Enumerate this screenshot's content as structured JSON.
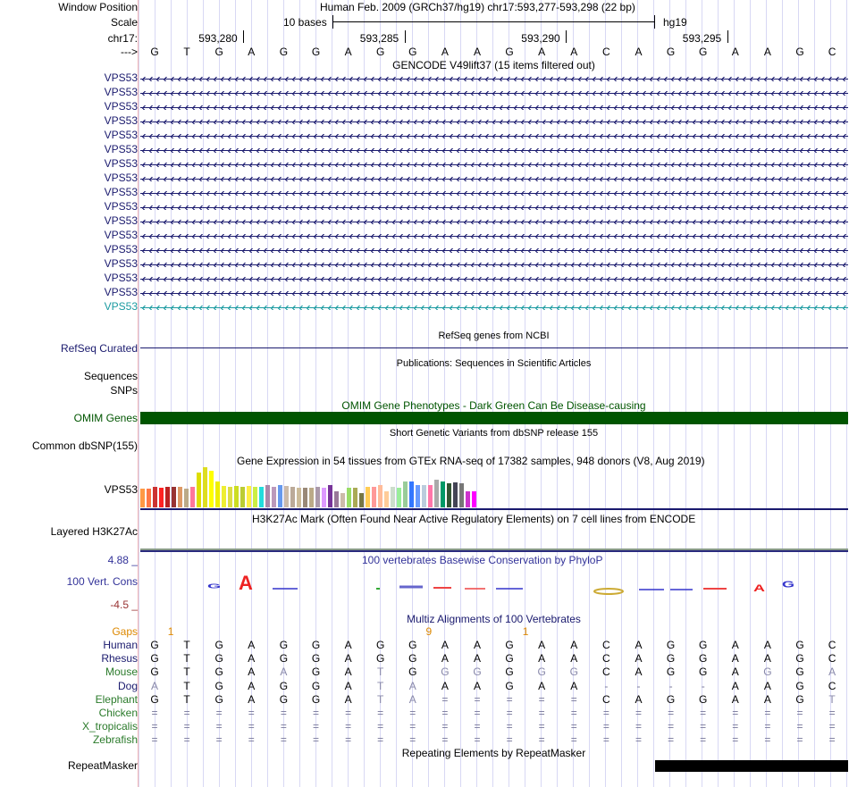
{
  "header": {
    "window_position_label": "Window Position",
    "scale_label": "Scale",
    "chrom_label": "chr17:",
    "strand_label": "--->",
    "assembly_title": "Human Feb. 2009 (GRCh37/hg19)   chr17:593,277-593,298 (22 bp)",
    "scale_text": "10 bases",
    "scale_db": "hg19",
    "ruler_ticks": [
      "593,280",
      "593,285",
      "593,290",
      "593,295"
    ],
    "bases": [
      "G",
      "T",
      "G",
      "A",
      "G",
      "G",
      "A",
      "G",
      "G",
      "A",
      "A",
      "G",
      "A",
      "A",
      "C",
      "A",
      "G",
      "G",
      "A",
      "A",
      "G",
      "C"
    ]
  },
  "gencode": {
    "title": "GENCODE V49lift37 (15 items filtered out)",
    "gene_labels": [
      "VPS53",
      "VPS53",
      "VPS53",
      "VPS53",
      "VPS53",
      "VPS53",
      "VPS53",
      "VPS53",
      "VPS53",
      "VPS53",
      "VPS53",
      "VPS53",
      "VPS53",
      "VPS53",
      "VPS53",
      "VPS53",
      "VPS53"
    ]
  },
  "refseq": {
    "label": "RefSeq Curated",
    "title": "RefSeq genes from NCBI"
  },
  "publications": {
    "sequences_label": "Sequences",
    "snps_label": "SNPs",
    "title": "Publications: Sequences in Scientific Articles"
  },
  "omim": {
    "label": "OMIM Genes",
    "title": "OMIM Gene Phenotypes - Dark Green Can Be Disease-causing"
  },
  "dbsnp": {
    "label": "Common dbSNP(155)",
    "title": "Short Genetic Variants from dbSNP release 155"
  },
  "gtex": {
    "label": "VPS53",
    "title": "Gene Expression in 54 tissues from GTEx RNA-seq of 17382 samples, 948 donors (V8, Aug 2019)",
    "bar_colors": [
      "#ff9944",
      "#ff7744",
      "#cc3333",
      "#ff2222",
      "#bb2222",
      "#993333",
      "#dd9966",
      "#bbaa88",
      "#ff7799",
      "#dddd00",
      "#dddd22",
      "#ffff00",
      "#eeee00",
      "#eeee33",
      "#dddd44",
      "#ccdd22",
      "#bbcc33",
      "#ffee44",
      "#ccee44",
      "#22dddd",
      "#aa88aa",
      "#bb99bb",
      "#6699ee",
      "#ccbbaa",
      "#bbaa99",
      "#ccbb99",
      "#998877",
      "#bbaa88",
      "#aa99aa",
      "#dd99ff",
      "#773399",
      "#997799",
      "#ccbbaa",
      "#99dd66",
      "#aaaa55",
      "#777744",
      "#ffcc55",
      "#ff9999",
      "#ffbb99",
      "#ffcc99",
      "#ccddcc",
      "#99ee99",
      "#99cc99",
      "#3377ff",
      "#6699ff",
      "#bbccdd",
      "#ff77aa",
      "#aaaaaa",
      "#009966",
      "#335533",
      "#444455",
      "#777777",
      "#cc33cc",
      "#ff00ff"
    ],
    "bar_values": [
      0.46,
      0.46,
      0.5,
      0.48,
      0.5,
      0.5,
      0.52,
      0.46,
      0.5,
      0.86,
      1.0,
      0.92,
      0.64,
      0.54,
      0.5,
      0.54,
      0.52,
      0.54,
      0.5,
      0.5,
      0.56,
      0.52,
      0.56,
      0.54,
      0.5,
      0.48,
      0.48,
      0.48,
      0.5,
      0.48,
      0.56,
      0.4,
      0.36,
      0.48,
      0.48,
      0.36,
      0.52,
      0.5,
      0.56,
      0.4,
      0.5,
      0.48,
      0.64,
      0.64,
      0.56,
      0.56,
      0.56,
      0.68,
      0.64,
      0.6,
      0.62,
      0.6,
      0.4,
      0.4
    ]
  },
  "h3k27": {
    "label": "Layered H3K27Ac",
    "title": "H3K27Ac Mark (Often Found Near Active Regulatory Elements) on 7 cell lines from ENCODE"
  },
  "conservation": {
    "label": "100 Vert. Cons",
    "max_label": "4.88 _",
    "min_label": "-4.5 _",
    "title": "100 vertebrates Basewise Conservation by PhyloP"
  },
  "multiz": {
    "title": "Multiz Alignments of 100 Vertebrates",
    "gaps_label": "Gaps",
    "gap_marks": [
      "1",
      "9",
      "1"
    ],
    "species": [
      {
        "name": "Human",
        "color": "#1a1a6e",
        "seq": [
          "G",
          "T",
          "G",
          "A",
          "G",
          "G",
          "A",
          "G",
          "G",
          "A",
          "A",
          "G",
          "A",
          "A",
          "C",
          "A",
          "G",
          "G",
          "A",
          "A",
          "G",
          "C"
        ]
      },
      {
        "name": "Rhesus",
        "color": "#1a1a6e",
        "seq": [
          "G",
          "T",
          "G",
          "A",
          "G",
          "G",
          "A",
          "G",
          "G",
          "A",
          "A",
          "G",
          "A",
          "A",
          "C",
          "A",
          "G",
          "G",
          "A",
          "A",
          "G",
          "C"
        ]
      },
      {
        "name": "Mouse",
        "color": "#2a7a2a",
        "seq": [
          "G",
          "T",
          "G",
          "A",
          "A",
          "G",
          "A",
          "T",
          "G",
          "G",
          "G",
          "G",
          "G",
          "G",
          "C",
          "A",
          "G",
          "G",
          "A",
          "G",
          "G",
          "A"
        ]
      },
      {
        "name": "Dog",
        "color": "#1a1a6e",
        "seq": [
          "A",
          "T",
          "G",
          "A",
          "G",
          "G",
          "A",
          "T",
          "A",
          "A",
          "A",
          "G",
          "A",
          "A",
          "-",
          "-",
          "-",
          "-",
          "A",
          "A",
          "G",
          "C"
        ]
      },
      {
        "name": "Elephant",
        "color": "#2a7a2a",
        "seq": [
          "G",
          "T",
          "G",
          "A",
          "G",
          "G",
          "A",
          "T",
          "A",
          "=",
          "=",
          "=",
          "=",
          "=",
          "C",
          "A",
          "G",
          "G",
          "A",
          "A",
          "G",
          "T"
        ]
      },
      {
        "name": "Chicken",
        "color": "#2a7a2a",
        "seq": [
          "=",
          "=",
          "=",
          "=",
          "=",
          "=",
          "=",
          "=",
          "=",
          "=",
          "=",
          "=",
          "=",
          "=",
          "=",
          "=",
          "=",
          "=",
          "=",
          "=",
          "=",
          "="
        ]
      },
      {
        "name": "X_tropicalis",
        "color": "#2a7a2a",
        "seq": [
          "=",
          "=",
          "=",
          "=",
          "=",
          "=",
          "=",
          "=",
          "=",
          "=",
          "=",
          "=",
          "=",
          "=",
          "=",
          "=",
          "=",
          "=",
          "=",
          "=",
          "=",
          "="
        ]
      },
      {
        "name": "Zebrafish",
        "color": "#2a7a2a",
        "seq": [
          "=",
          "=",
          "=",
          "=",
          "=",
          "=",
          "=",
          "=",
          "=",
          "=",
          "=",
          "=",
          "=",
          "=",
          "=",
          "=",
          "=",
          "=",
          "=",
          "=",
          "=",
          "="
        ]
      }
    ]
  },
  "repeatmasker": {
    "label": "RepeatMasker",
    "title": "Repeating Elements by RepeatMasker"
  },
  "colors": {
    "label_blue": "#1a1a6e",
    "omim_green": "#005500",
    "omim_label": "#005500",
    "cons_blue": "#333399",
    "gaps_orange": "#dd8800",
    "cyan_gene": "#1a9aa0"
  }
}
